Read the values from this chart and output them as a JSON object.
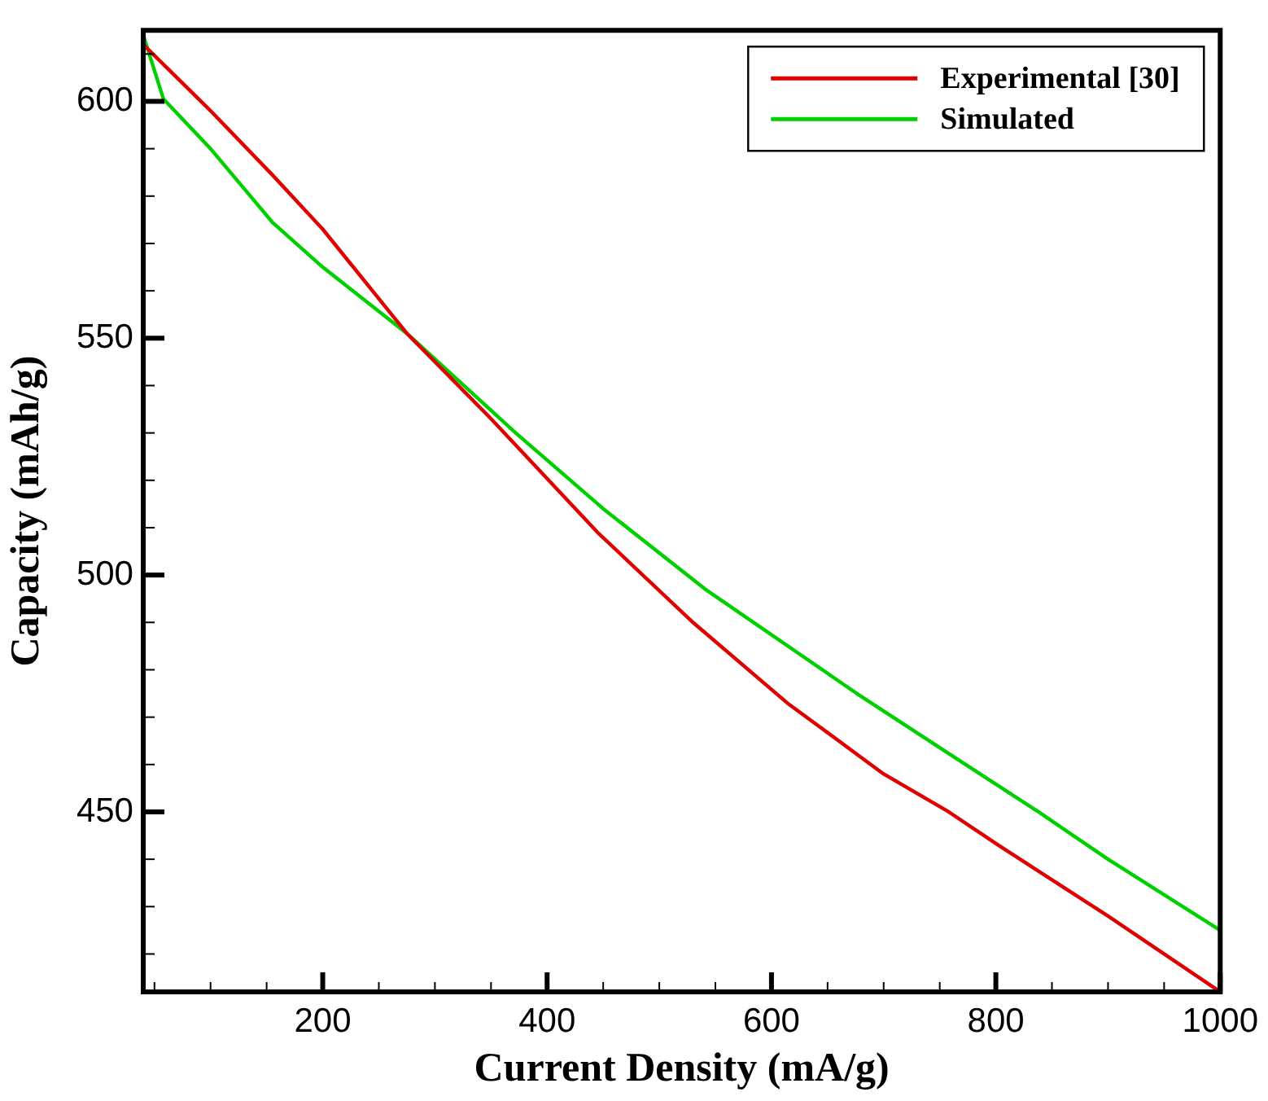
{
  "chart_data": {
    "type": "line",
    "xlabel": "Current Density (mA/g)",
    "ylabel": "Capacity (mAh/g)",
    "xlim": [
      40,
      1000
    ],
    "ylim": [
      412,
      615
    ],
    "xticks": [
      {
        "value": 50,
        "label": null
      },
      {
        "value": 100,
        "label": null
      },
      {
        "value": 150,
        "label": null
      },
      200,
      {
        "value": 250,
        "label": null
      },
      {
        "value": 300,
        "label": null
      },
      {
        "value": 350,
        "label": null
      },
      400,
      {
        "value": 450,
        "label": null
      },
      {
        "value": 500,
        "label": null
      },
      {
        "value": 550,
        "label": null
      },
      600,
      {
        "value": 650,
        "label": null
      },
      {
        "value": 700,
        "label": null
      },
      {
        "value": 750,
        "label": null
      },
      800,
      {
        "value": 850,
        "label": null
      },
      {
        "value": 900,
        "label": null
      },
      {
        "value": 950,
        "label": null
      },
      1000
    ],
    "yticks": [
      {
        "value": 420,
        "label": null
      },
      {
        "value": 430,
        "label": null
      },
      {
        "value": 440,
        "label": null
      },
      450,
      {
        "value": 460,
        "label": null
      },
      {
        "value": 470,
        "label": null
      },
      {
        "value": 480,
        "label": null
      },
      {
        "value": 490,
        "label": null
      },
      500,
      {
        "value": 510,
        "label": null
      },
      {
        "value": 520,
        "label": null
      },
      {
        "value": 530,
        "label": null
      },
      {
        "value": 540,
        "label": null
      },
      550,
      {
        "value": 560,
        "label": null
      },
      {
        "value": 570,
        "label": null
      },
      {
        "value": 580,
        "label": null
      },
      {
        "value": 590,
        "label": null
      },
      600,
      {
        "value": 610,
        "label": null
      }
    ],
    "legend": "top right",
    "grid": false,
    "marker": "none",
    "line_style": "solid",
    "series": [
      {
        "name": "Experimental [30]",
        "color": "#e00000",
        "x": [
          40,
          100,
          155,
          200,
          275,
          350,
          445,
          530,
          614,
          700,
          758,
          802,
          900,
          1000
        ],
        "values": [
          612,
          598,
          584.5,
          573,
          551,
          533,
          509,
          490,
          473,
          458,
          450,
          443,
          428,
          412
        ]
      },
      {
        "name": "Simulated",
        "color": "#00d000",
        "x": [
          40,
          58,
          100,
          155,
          200,
          275,
          372,
          450,
          541,
          676,
          760,
          838,
          900,
          1000
        ],
        "values": [
          614,
          600.5,
          590,
          574.5,
          565,
          551,
          530,
          514,
          497,
          475,
          462,
          450,
          440,
          425
        ]
      }
    ]
  }
}
